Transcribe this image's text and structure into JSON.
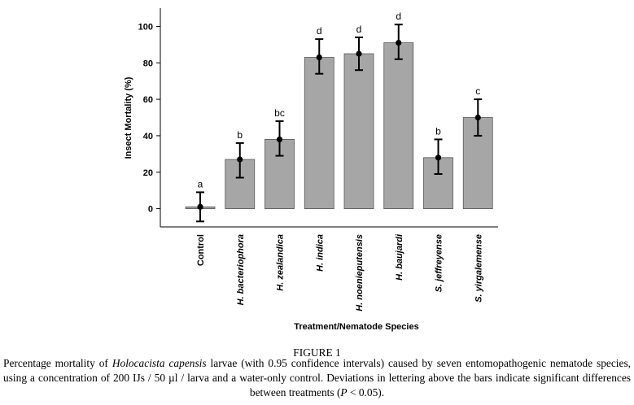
{
  "chart_data": {
    "type": "bar",
    "ylabel": "Insect Mortality (%)",
    "xlabel": "Treatment/Nematode Species",
    "ylim": [
      -10,
      110
    ],
    "yticks": [
      0,
      20,
      40,
      60,
      80,
      100
    ],
    "categories": [
      "Control",
      "H. bacteriophora",
      "H. zealandica",
      "H. indica",
      "H. noenieputensis",
      "H. baujardi",
      "S. jeffreyense",
      "S. yirgalemense"
    ],
    "values": [
      1,
      27,
      38,
      83,
      85,
      91,
      28,
      50
    ],
    "ci_lower": [
      -7,
      17,
      29,
      74,
      76,
      82,
      19,
      40
    ],
    "ci_upper": [
      9,
      36,
      48,
      93,
      94,
      101,
      38,
      60
    ],
    "letters": [
      "a",
      "b",
      "bc",
      "d",
      "d",
      "d",
      "b",
      "c"
    ],
    "bar_color": "#a6a6a6",
    "error_color": "#000000"
  },
  "caption": {
    "title": "FIGURE 1",
    "t1": "Percentage mortality of ",
    "species": "Holocacista capensis",
    "t2": " larvae (with 0.95 confidence intervals) caused by seven entomopathogenic nematode species, using a concentration of 200 IJs / 50 µl / larva and a water-only control. Deviations in lettering above the bars indicate significant differences between treatments (",
    "p": "P",
    "t3": " < 0.05)."
  }
}
